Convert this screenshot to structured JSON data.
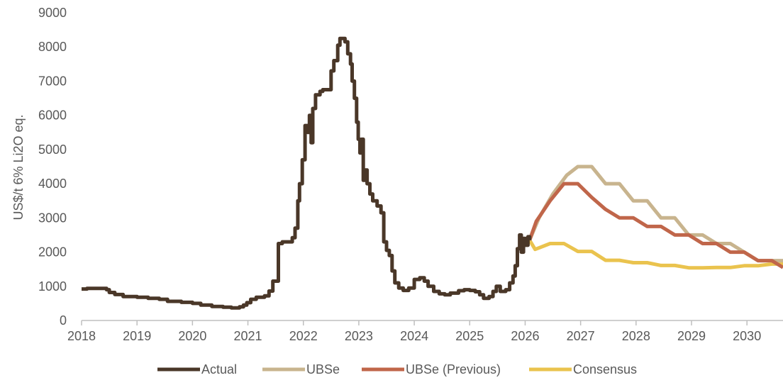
{
  "chart_data": {
    "type": "line",
    "title": "",
    "xlabel": "",
    "ylabel": "US$/t 6% Li2O eq.",
    "xlim": [
      2018,
      2030.65
    ],
    "ylim": [
      0,
      9000
    ],
    "x_ticks": [
      "2018",
      "2019",
      "2020",
      "2021",
      "2022",
      "2023",
      "2024",
      "2025",
      "2026",
      "2027",
      "2028",
      "2029",
      "2030"
    ],
    "y_ticks": [
      "0",
      "1000",
      "2000",
      "3000",
      "4000",
      "5000",
      "6000",
      "7000",
      "8000",
      "9000"
    ],
    "grid": false,
    "legend_position": "bottom",
    "series": [
      {
        "name": "Actual",
        "color": "#4a3728",
        "step": true,
        "points": [
          [
            2018.0,
            920
          ],
          [
            2018.1,
            940
          ],
          [
            2018.3,
            940
          ],
          [
            2018.45,
            900
          ],
          [
            2018.5,
            820
          ],
          [
            2018.6,
            760
          ],
          [
            2018.75,
            700
          ],
          [
            2019.0,
            680
          ],
          [
            2019.2,
            650
          ],
          [
            2019.4,
            620
          ],
          [
            2019.55,
            560
          ],
          [
            2019.8,
            530
          ],
          [
            2020.0,
            500
          ],
          [
            2020.15,
            450
          ],
          [
            2020.35,
            410
          ],
          [
            2020.55,
            390
          ],
          [
            2020.7,
            370
          ],
          [
            2020.85,
            400
          ],
          [
            2020.92,
            450
          ],
          [
            2020.98,
            520
          ],
          [
            2021.05,
            620
          ],
          [
            2021.15,
            680
          ],
          [
            2021.3,
            720
          ],
          [
            2021.38,
            860
          ],
          [
            2021.45,
            1150
          ],
          [
            2021.55,
            2250
          ],
          [
            2021.62,
            2300
          ],
          [
            2021.8,
            2420
          ],
          [
            2021.85,
            2700
          ],
          [
            2021.9,
            3500
          ],
          [
            2021.93,
            4000
          ],
          [
            2021.98,
            4700
          ],
          [
            2022.03,
            5700
          ],
          [
            2022.08,
            5500
          ],
          [
            2022.11,
            6000
          ],
          [
            2022.14,
            5200
          ],
          [
            2022.17,
            6200
          ],
          [
            2022.22,
            6600
          ],
          [
            2022.3,
            6700
          ],
          [
            2022.35,
            6750
          ],
          [
            2022.5,
            7300
          ],
          [
            2022.55,
            7600
          ],
          [
            2022.62,
            8050
          ],
          [
            2022.66,
            8250
          ],
          [
            2022.75,
            8150
          ],
          [
            2022.8,
            7800
          ],
          [
            2022.85,
            7500
          ],
          [
            2022.88,
            7000
          ],
          [
            2022.92,
            6500
          ],
          [
            2022.96,
            5800
          ],
          [
            2022.99,
            5300
          ],
          [
            2023.02,
            4900
          ],
          [
            2023.05,
            5300
          ],
          [
            2023.08,
            4100
          ],
          [
            2023.12,
            4400
          ],
          [
            2023.15,
            4000
          ],
          [
            2023.2,
            3700
          ],
          [
            2023.25,
            3500
          ],
          [
            2023.33,
            3350
          ],
          [
            2023.4,
            3150
          ],
          [
            2023.45,
            2300
          ],
          [
            2023.5,
            2050
          ],
          [
            2023.55,
            1900
          ],
          [
            2023.6,
            1450
          ],
          [
            2023.65,
            1100
          ],
          [
            2023.72,
            950
          ],
          [
            2023.8,
            880
          ],
          [
            2023.9,
            950
          ],
          [
            2024.0,
            1200
          ],
          [
            2024.1,
            1250
          ],
          [
            2024.18,
            1150
          ],
          [
            2024.25,
            1000
          ],
          [
            2024.35,
            850
          ],
          [
            2024.45,
            780
          ],
          [
            2024.55,
            750
          ],
          [
            2024.65,
            800
          ],
          [
            2024.8,
            870
          ],
          [
            2024.9,
            900
          ],
          [
            2025.0,
            880
          ],
          [
            2025.1,
            840
          ],
          [
            2025.18,
            750
          ],
          [
            2025.25,
            650
          ],
          [
            2025.35,
            700
          ],
          [
            2025.42,
            850
          ],
          [
            2025.48,
            1000
          ],
          [
            2025.55,
            850
          ],
          [
            2025.65,
            900
          ],
          [
            2025.72,
            1100
          ],
          [
            2025.78,
            1300
          ],
          [
            2025.82,
            1600
          ],
          [
            2025.86,
            2100
          ],
          [
            2025.9,
            2500
          ],
          [
            2025.93,
            2000
          ],
          [
            2025.97,
            2400
          ],
          [
            2026.0,
            2200
          ],
          [
            2026.05,
            2450
          ],
          [
            2026.08,
            2350
          ]
        ]
      },
      {
        "name": "UBSe",
        "color": "#c8b48e",
        "step": false,
        "points": [
          [
            2026.08,
            2350
          ],
          [
            2026.25,
            3000
          ],
          [
            2026.5,
            3700
          ],
          [
            2026.75,
            4250
          ],
          [
            2026.95,
            4500
          ],
          [
            2027.2,
            4500
          ],
          [
            2027.45,
            4000
          ],
          [
            2027.7,
            4000
          ],
          [
            2027.95,
            3500
          ],
          [
            2028.2,
            3500
          ],
          [
            2028.45,
            3000
          ],
          [
            2028.7,
            3000
          ],
          [
            2028.95,
            2500
          ],
          [
            2029.2,
            2500
          ],
          [
            2029.45,
            2250
          ],
          [
            2029.7,
            2250
          ],
          [
            2029.95,
            2000
          ],
          [
            2030.2,
            1750
          ],
          [
            2030.45,
            1750
          ],
          [
            2030.65,
            1750
          ]
        ]
      },
      {
        "name": "UBSe (Previous)",
        "color": "#c0664a",
        "step": false,
        "points": [
          [
            2026.08,
            2350
          ],
          [
            2026.2,
            2900
          ],
          [
            2026.45,
            3500
          ],
          [
            2026.7,
            4000
          ],
          [
            2026.95,
            4000
          ],
          [
            2027.2,
            3600
          ],
          [
            2027.45,
            3250
          ],
          [
            2027.7,
            3000
          ],
          [
            2027.95,
            3000
          ],
          [
            2028.2,
            2750
          ],
          [
            2028.45,
            2750
          ],
          [
            2028.7,
            2500
          ],
          [
            2028.95,
            2500
          ],
          [
            2029.2,
            2250
          ],
          [
            2029.45,
            2250
          ],
          [
            2029.7,
            2000
          ],
          [
            2029.95,
            2000
          ],
          [
            2030.2,
            1750
          ],
          [
            2030.45,
            1750
          ],
          [
            2030.65,
            1550
          ]
        ]
      },
      {
        "name": "Consensus",
        "color": "#eac34e",
        "step": false,
        "points": [
          [
            2026.08,
            2350
          ],
          [
            2026.18,
            2080
          ],
          [
            2026.45,
            2250
          ],
          [
            2026.7,
            2250
          ],
          [
            2026.95,
            2020
          ],
          [
            2027.2,
            2020
          ],
          [
            2027.45,
            1760
          ],
          [
            2027.7,
            1760
          ],
          [
            2027.95,
            1690
          ],
          [
            2028.2,
            1690
          ],
          [
            2028.45,
            1610
          ],
          [
            2028.7,
            1610
          ],
          [
            2028.95,
            1540
          ],
          [
            2029.2,
            1540
          ],
          [
            2029.45,
            1550
          ],
          [
            2029.7,
            1550
          ],
          [
            2029.95,
            1600
          ],
          [
            2030.2,
            1600
          ],
          [
            2030.45,
            1650
          ],
          [
            2030.65,
            1650
          ]
        ]
      }
    ]
  }
}
